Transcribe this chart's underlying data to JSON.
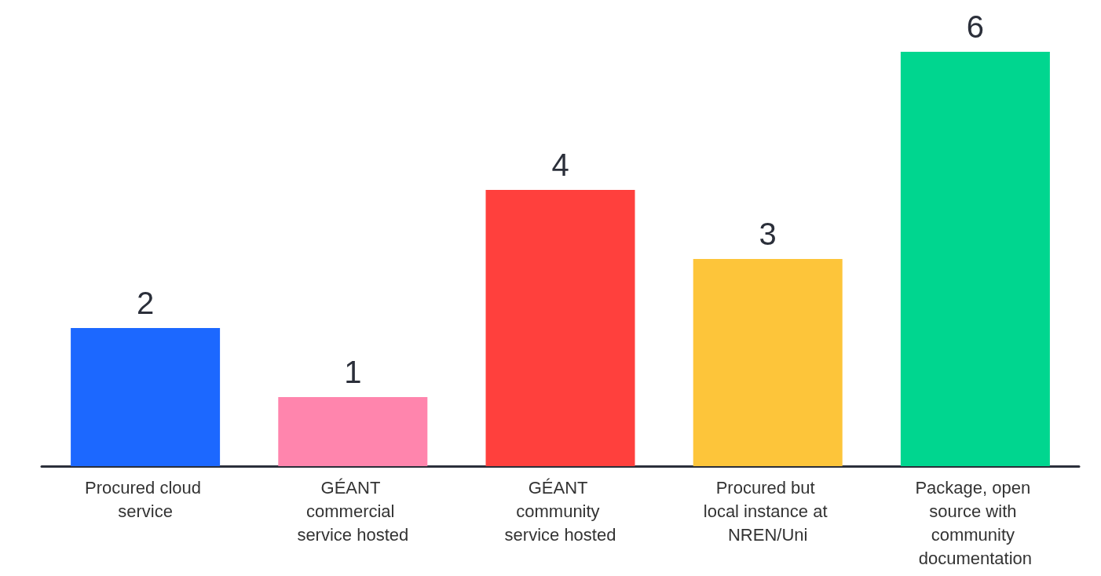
{
  "chart_data": {
    "type": "bar",
    "categories": [
      "Procured cloud service",
      "GÉANT commercial service hosted",
      "GÉANT community service hosted",
      "Procured but local instance at NREN/Uni",
      "Package, open source with community documentation"
    ],
    "values": [
      2,
      1,
      4,
      3,
      6
    ],
    "colors": [
      "#1c68ff",
      "#ff85ad",
      "#ff403d",
      "#fdc53a",
      "#00d68f"
    ],
    "data_labels": true,
    "grid": false
  }
}
